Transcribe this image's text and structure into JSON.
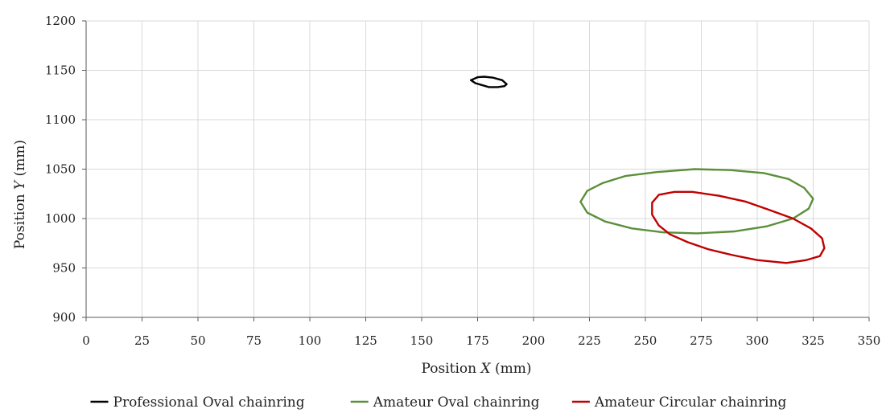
{
  "chart_data": {
    "type": "line",
    "title": "",
    "xlabel_prefix": "Position ",
    "xlabel_var": "X",
    "xlabel_suffix": " (mm)",
    "ylabel_prefix": "Position ",
    "ylabel_var": "Y",
    "ylabel_suffix": " (mm)",
    "xlim": [
      0,
      350
    ],
    "ylim": [
      900,
      1200
    ],
    "xticks": [
      0,
      25,
      50,
      75,
      100,
      125,
      150,
      175,
      200,
      225,
      250,
      275,
      300,
      325,
      350
    ],
    "yticks": [
      900,
      950,
      1000,
      1050,
      1100,
      1150,
      1200
    ],
    "grid": true,
    "legend_position": "bottom",
    "series": [
      {
        "name": "Professional Oval chainring",
        "color": "#000000",
        "points": [
          [
            172,
            1140
          ],
          [
            175,
            1143
          ],
          [
            178,
            1143.5
          ],
          [
            182,
            1142.5
          ],
          [
            186,
            1140
          ],
          [
            188,
            1136
          ],
          [
            187,
            1134
          ],
          [
            184,
            1133
          ],
          [
            180,
            1133
          ],
          [
            177,
            1135
          ],
          [
            174,
            1137
          ],
          [
            172,
            1140
          ]
        ]
      },
      {
        "name": "Amateur Oval chainring",
        "color": "#5b8f3a",
        "points": [
          [
            221,
            1017
          ],
          [
            224,
            1028
          ],
          [
            231,
            1036
          ],
          [
            241,
            1043
          ],
          [
            255,
            1047
          ],
          [
            272,
            1050
          ],
          [
            288,
            1049
          ],
          [
            303,
            1046
          ],
          [
            314,
            1040
          ],
          [
            321,
            1031
          ],
          [
            325,
            1020
          ],
          [
            323,
            1010
          ],
          [
            316,
            1000
          ],
          [
            304,
            992
          ],
          [
            290,
            987
          ],
          [
            273,
            985
          ],
          [
            258,
            986
          ],
          [
            244,
            990
          ],
          [
            232,
            997
          ],
          [
            224,
            1006
          ],
          [
            221,
            1017
          ]
        ]
      },
      {
        "name": "Amateur Circular chainring",
        "color": "#c00000",
        "points": [
          [
            253,
            1016
          ],
          [
            256,
            1024
          ],
          [
            263,
            1027
          ],
          [
            271,
            1027
          ],
          [
            283,
            1023
          ],
          [
            295,
            1017
          ],
          [
            305,
            1009
          ],
          [
            316,
            1000
          ],
          [
            324,
            990
          ],
          [
            329,
            980
          ],
          [
            330,
            970
          ],
          [
            328,
            962
          ],
          [
            322,
            958
          ],
          [
            313,
            955
          ],
          [
            300,
            958
          ],
          [
            289,
            963
          ],
          [
            278,
            969
          ],
          [
            269,
            976
          ],
          [
            261,
            984
          ],
          [
            256,
            993
          ],
          [
            253,
            1004
          ],
          [
            253,
            1016
          ]
        ]
      }
    ]
  }
}
